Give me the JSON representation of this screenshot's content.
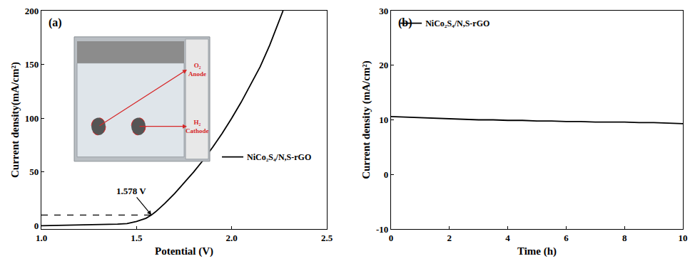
{
  "chart_data": [
    {
      "type": "line",
      "panel_label": "(a)",
      "x_label": "Potential (V)",
      "y_label": "Current density(mA/cm²)",
      "xlim": [
        1.0,
        2.5
      ],
      "ylim": [
        -3,
        200
      ],
      "xticks": [
        {
          "value": 1.0,
          "label": "1.0"
        },
        {
          "value": 1.5,
          "label": "1.5"
        },
        {
          "value": 2.0,
          "label": "2.0"
        },
        {
          "value": 2.5,
          "label": "2.5"
        }
      ],
      "yticks": [
        0,
        50,
        100,
        150,
        200
      ],
      "grid": false,
      "legend": "right",
      "series": [
        {
          "name": "NiCo₂S₄/N,S-rGO",
          "color": "#000000",
          "line_style": "solid",
          "x": [
            1.0,
            1.1,
            1.2,
            1.3,
            1.4,
            1.45,
            1.5,
            1.55,
            1.578,
            1.6,
            1.65,
            1.7,
            1.75,
            1.8,
            1.85,
            1.9,
            1.95,
            2.0,
            2.05,
            2.1,
            2.15,
            2.2,
            2.25,
            2.27
          ],
          "values": [
            0,
            0.3,
            0.6,
            1,
            1.5,
            2,
            4,
            7,
            10,
            13,
            21,
            30,
            40,
            50,
            61,
            73,
            86,
            100,
            115,
            131,
            148,
            168,
            190,
            200
          ]
        }
      ],
      "annotations": [
        {
          "text": "1.578 V",
          "x": 1.578,
          "y": 10
        }
      ],
      "inset": {
        "labels": [
          [
            "O₂",
            "Anode"
          ],
          [
            "H₂",
            "Cathode"
          ]
        ]
      }
    },
    {
      "type": "line",
      "panel_label": "(b)",
      "x_label": "Time (h)",
      "y_label": "Current density (mA/cm²)",
      "xlim": [
        0,
        10
      ],
      "ylim": [
        -10,
        30
      ],
      "xticks": [
        0,
        2,
        4,
        6,
        8,
        10
      ],
      "yticks": [
        -10,
        0,
        10,
        20,
        30
      ],
      "grid": false,
      "legend": "top-left",
      "series": [
        {
          "name": "NiCo₂S₄/N,S-rGO",
          "color": "#000000",
          "line_style": "solid",
          "x": [
            0,
            0.5,
            1,
            1.5,
            2,
            2.5,
            3,
            3.5,
            4,
            4.5,
            5,
            5.5,
            6,
            6.5,
            7,
            7.5,
            8,
            8.5,
            9,
            9.5,
            10
          ],
          "values": [
            10.6,
            10.5,
            10.4,
            10.3,
            10.2,
            10.1,
            10.0,
            10.0,
            9.9,
            9.9,
            9.8,
            9.8,
            9.7,
            9.7,
            9.6,
            9.6,
            9.6,
            9.5,
            9.5,
            9.4,
            9.3
          ]
        }
      ]
    }
  ]
}
